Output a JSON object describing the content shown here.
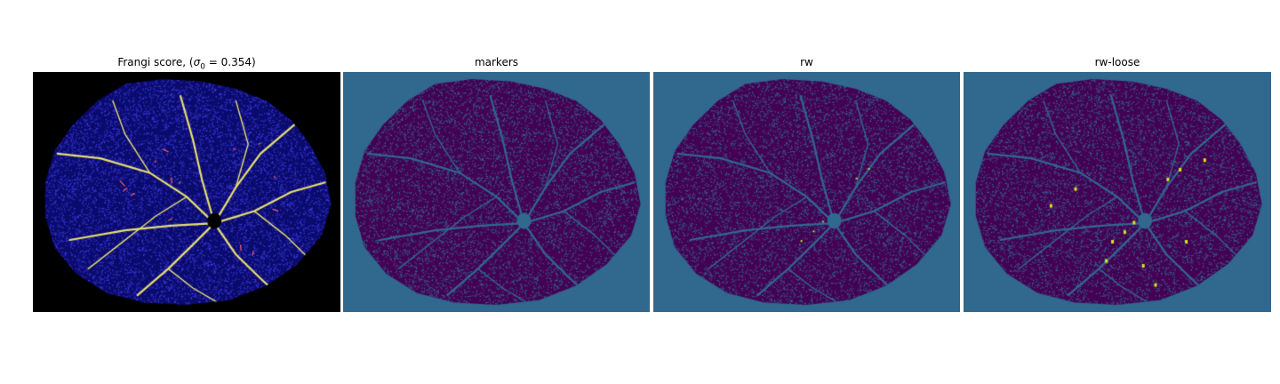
{
  "figure": {
    "panels": [
      {
        "id": "frangi",
        "title_prefix": "Frangi score, (",
        "title_symbol": "σ",
        "title_subscript": "0",
        "title_suffix": " = 0.354)",
        "image": "frangi-vesselness-map",
        "colors": {
          "background": "#000000",
          "fill": "#0b0b6e",
          "texture": "#3a3ae0",
          "vessel": "#e8e070",
          "hot": "#ff6060"
        }
      },
      {
        "id": "markers",
        "title": "markers",
        "image": "marker-label-map",
        "colors": {
          "background": "#31688e",
          "fill": "#440154",
          "texture": "#31688e",
          "vessel": "#31688e"
        }
      },
      {
        "id": "rw",
        "title": "rw",
        "image": "random-walker-segmentation",
        "colors": {
          "background": "#31688e",
          "fill": "#440154",
          "texture": "#31688e",
          "vessel": "#31688e",
          "highlight": "#b5de2b"
        }
      },
      {
        "id": "rw-loose",
        "title": "rw-loose",
        "image": "random-walker-loose-segmentation",
        "colors": {
          "background": "#31688e",
          "fill": "#440154",
          "texture": "#31688e",
          "vessel": "#31688e",
          "highlight": "#dde318"
        }
      }
    ]
  }
}
